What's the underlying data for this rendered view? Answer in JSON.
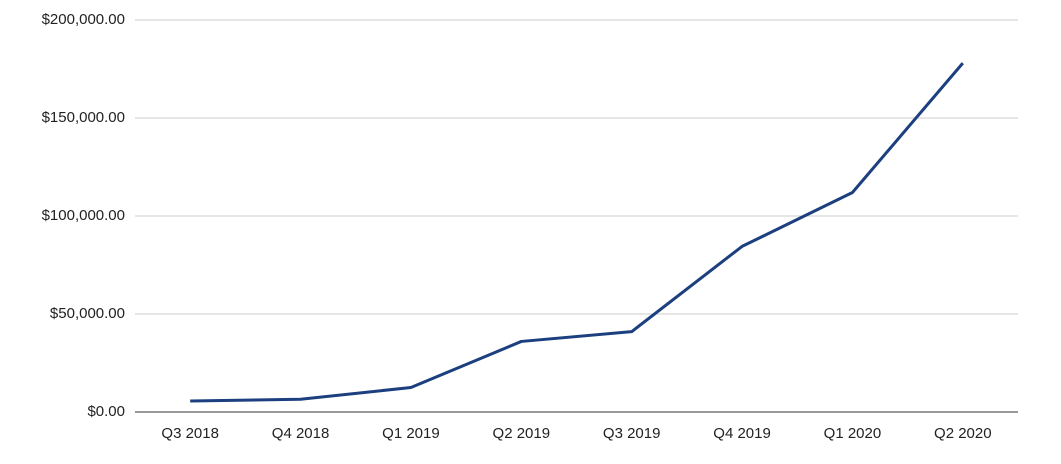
{
  "chart_data": {
    "type": "line",
    "categories": [
      "Q3 2018",
      "Q4 2018",
      "Q1 2019",
      "Q2 2019",
      "Q3 2019",
      "Q4 2019",
      "Q1 2020",
      "Q2 2020"
    ],
    "series": [
      {
        "color": "#1c3f7f",
        "values": [
          5600,
          6500,
          12500,
          36000,
          41000,
          84500,
          112000,
          178000
        ]
      }
    ],
    "ylim": [
      0,
      200000
    ],
    "yticks": [
      {
        "value": 0,
        "label": "$0.00"
      },
      {
        "value": 50000,
        "label": "$50,000.00"
      },
      {
        "value": 100000,
        "label": "$100,000.00"
      },
      {
        "value": 150000,
        "label": "$150,000.00"
      },
      {
        "value": 200000,
        "label": "$200,000.00"
      }
    ],
    "grid": true
  }
}
